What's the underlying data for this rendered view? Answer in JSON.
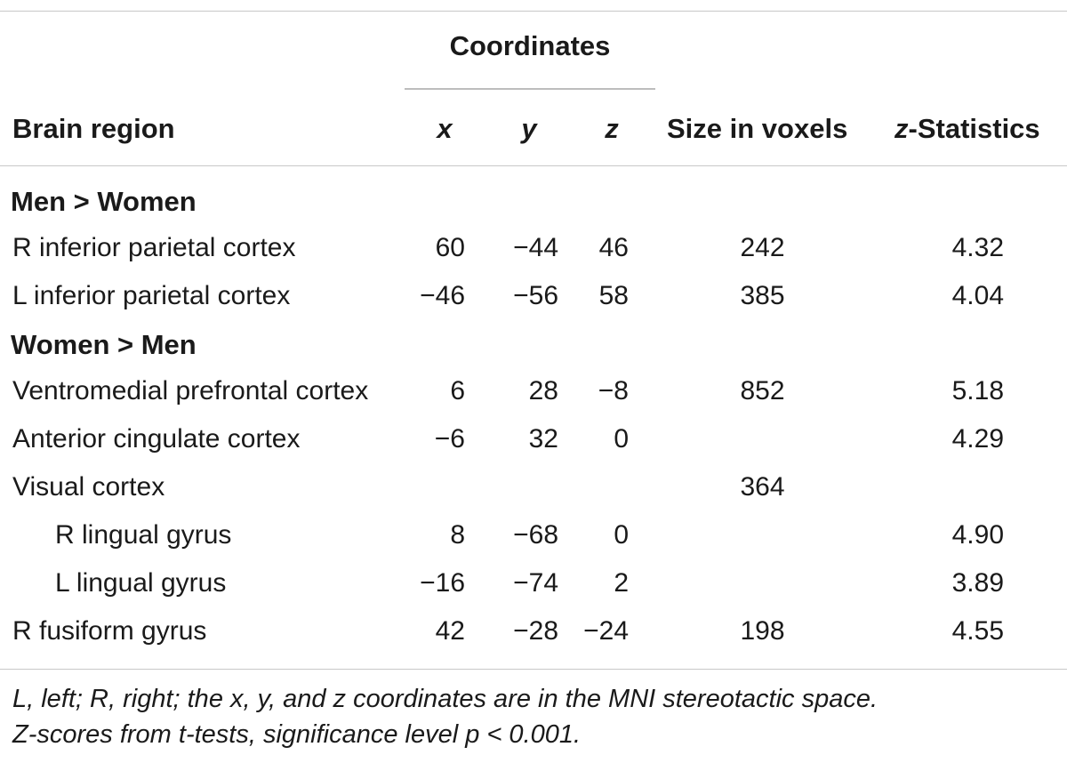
{
  "table": {
    "header": {
      "coordinates": "Coordinates",
      "brain_region": "Brain region",
      "x": "x",
      "y": "y",
      "z": "z",
      "size": "Size in voxels",
      "zstat_italic": "z",
      "zstat_rest": "-Statistics"
    },
    "groups": [
      {
        "label": "Men > Women",
        "rows": [
          {
            "region": "R inferior parietal cortex",
            "x": "60",
            "y": "−44",
            "z": "46",
            "size": "242",
            "zstat": "4.32"
          },
          {
            "region": "L inferior parietal cortex",
            "x": "−46",
            "y": "−56",
            "z": "58",
            "size": "385",
            "zstat": "4.04"
          }
        ]
      },
      {
        "label": "Women > Men",
        "rows": [
          {
            "region": "Ventromedial prefrontal cortex",
            "x": "6",
            "y": "28",
            "z": "−8",
            "size": "852",
            "zstat": "5.18"
          },
          {
            "region": "Anterior cingulate cortex",
            "x": "−6",
            "y": "32",
            "z": "0",
            "size": "",
            "zstat": "4.29"
          },
          {
            "region": "Visual cortex",
            "x": "",
            "y": "",
            "z": "",
            "size": "364",
            "zstat": ""
          },
          {
            "region": "R lingual gyrus",
            "x": "8",
            "y": "−68",
            "z": "0",
            "size": "",
            "zstat": "4.90"
          },
          {
            "region": "L lingual gyrus",
            "x": "−16",
            "y": "−74",
            "z": "2",
            "size": "",
            "zstat": "3.89"
          },
          {
            "region": "R fusiform gyrus",
            "x": "42",
            "y": "−28",
            "z": "−24",
            "size": "198",
            "zstat": "4.55"
          }
        ]
      }
    ],
    "footnote_line1": "L, left; R, right; the x, y, and z coordinates are in the MNI stereotactic space.",
    "footnote_line2": "Z-scores from t-tests, significance level p < 0.001."
  }
}
